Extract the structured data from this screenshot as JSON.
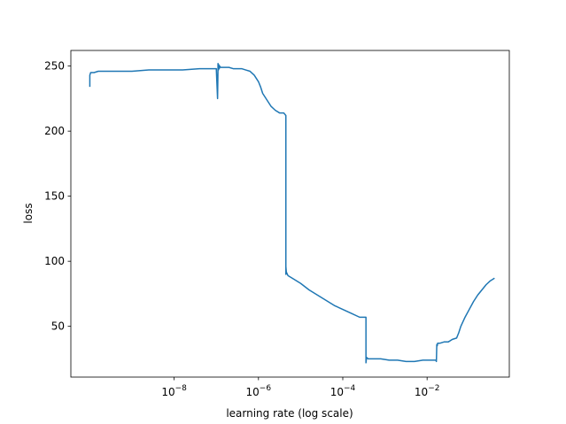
{
  "chart_data": {
    "type": "line",
    "title": "",
    "xlabel": "learning rate (log scale)",
    "ylabel": "loss",
    "xscale": "log",
    "xlim_log10": [
      -10.45,
      -0.05
    ],
    "ylim": [
      11,
      262
    ],
    "grid": false,
    "color": "#1f77b4",
    "xticks": [
      {
        "log10": -8,
        "base": "10",
        "exp": "−8"
      },
      {
        "log10": -6,
        "base": "10",
        "exp": "−6"
      },
      {
        "log10": -4,
        "base": "10",
        "exp": "−4"
      },
      {
        "log10": -2,
        "base": "10",
        "exp": "−2"
      }
    ],
    "yticks": [
      {
        "value": 50,
        "label": "50"
      },
      {
        "value": 100,
        "label": "100"
      },
      {
        "value": 150,
        "label": "150"
      },
      {
        "value": 200,
        "label": "200"
      },
      {
        "value": 250,
        "label": "250"
      }
    ],
    "series": [
      {
        "name": "loss",
        "log10_lr": [
          -10.0,
          -10.0,
          -10.0,
          -9.98,
          -9.95,
          -9.9,
          -9.8,
          -9.6,
          -9.3,
          -9.0,
          -8.6,
          -8.2,
          -7.8,
          -7.4,
          -7.1,
          -7.0,
          -6.97,
          -6.96,
          -6.96,
          -6.95,
          -6.94,
          -6.93,
          -6.92,
          -6.9,
          -6.85,
          -6.8,
          -6.7,
          -6.6,
          -6.5,
          -6.4,
          -6.3,
          -6.2,
          -6.1,
          -6.0,
          -5.95,
          -5.9,
          -5.8,
          -5.7,
          -5.6,
          -5.5,
          -5.4,
          -5.35,
          -5.35,
          -5.35,
          -5.34,
          -5.33,
          -5.3,
          -5.2,
          -5.0,
          -4.8,
          -4.6,
          -4.4,
          -4.2,
          -4.0,
          -3.8,
          -3.6,
          -3.45,
          -3.45,
          -3.44,
          -3.43,
          -3.4,
          -3.3,
          -3.1,
          -2.9,
          -2.7,
          -2.5,
          -2.3,
          -2.1,
          -1.9,
          -1.8,
          -1.79,
          -1.78,
          -1.77,
          -1.76,
          -1.75,
          -1.7,
          -1.6,
          -1.5,
          -1.4,
          -1.3,
          -1.25,
          -1.2,
          -1.1,
          -1.0,
          -0.9,
          -0.8,
          -0.7,
          -0.6,
          -0.5,
          -0.4
        ],
        "loss": [
          234,
          240,
          243,
          245,
          245,
          245,
          246,
          246,
          246,
          246,
          247,
          247,
          247,
          248,
          248,
          248,
          225,
          248,
          252,
          247,
          251,
          248,
          250,
          249,
          249,
          249,
          249,
          248,
          248,
          248,
          247,
          246,
          243,
          238,
          234,
          229,
          224,
          219,
          216,
          214,
          214,
          212,
          90,
          96,
          92,
          91,
          89,
          87,
          83,
          78,
          74,
          70,
          66,
          63,
          60,
          57,
          57,
          22,
          25,
          26,
          25,
          25,
          25,
          24,
          24,
          23,
          23,
          24,
          24,
          24,
          24,
          23,
          36,
          35,
          37,
          37,
          38,
          38,
          40,
          41,
          45,
          50,
          57,
          63,
          69,
          74,
          78,
          82,
          85,
          87
        ]
      }
    ]
  }
}
